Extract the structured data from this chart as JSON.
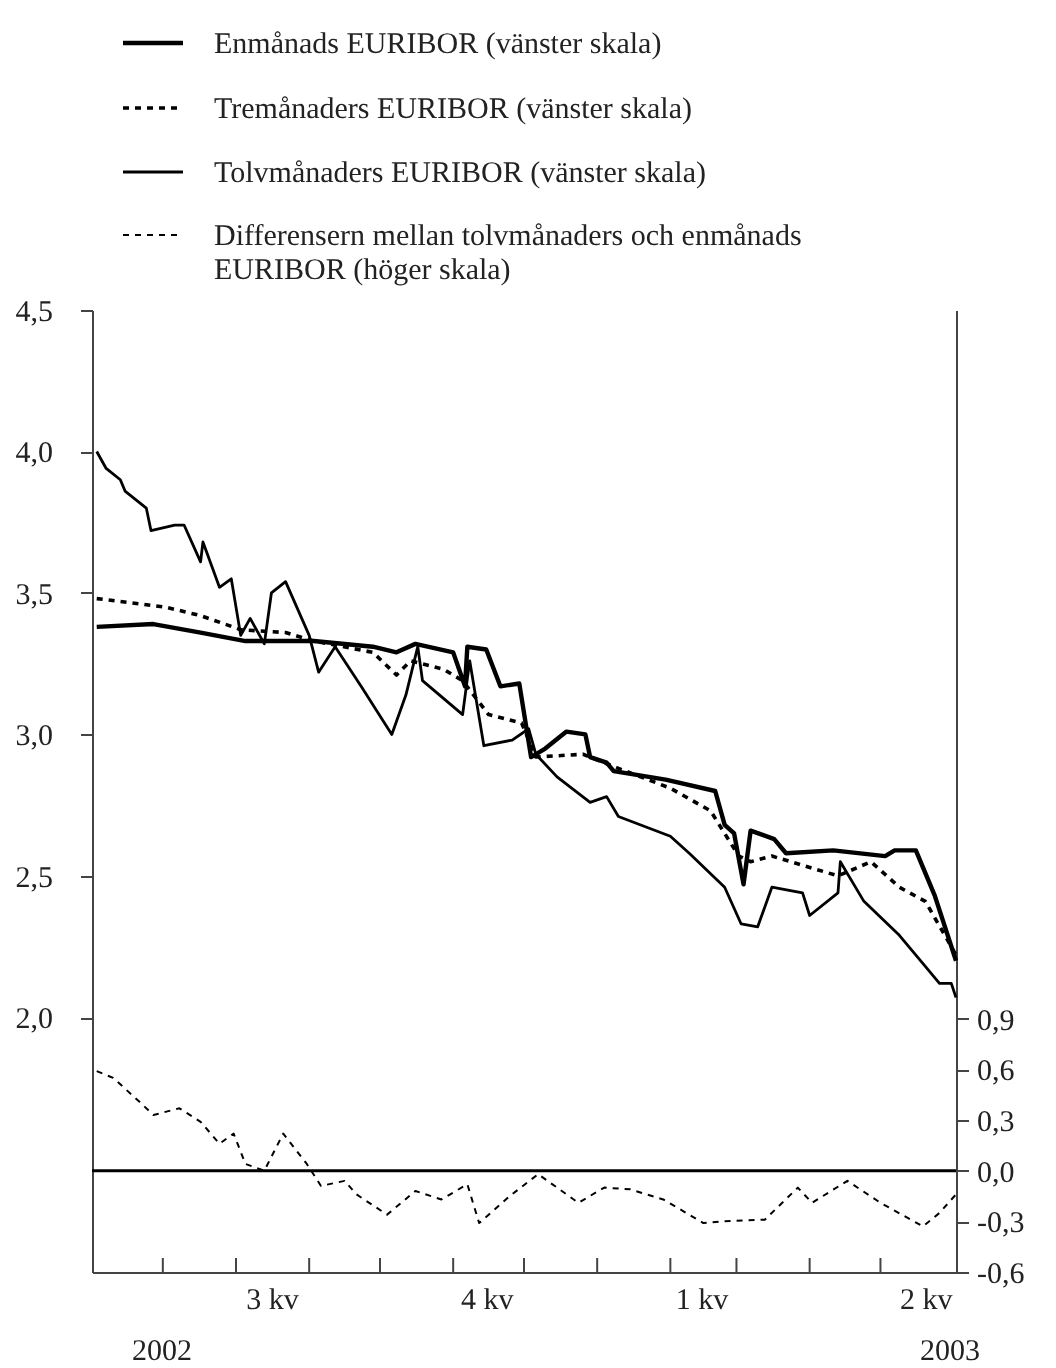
{
  "chart_data": {
    "type": "line",
    "legend": "top left",
    "xlim": [
      "2002-06-01",
      "2003-06-02"
    ],
    "ylim": [
      1.1,
      4.5
    ],
    "y2lim": [
      -0.6,
      5.1
    ],
    "yticks": [
      {
        "value": 2.0,
        "label": "2,0"
      },
      {
        "value": 2.5,
        "label": "2,5"
      },
      {
        "value": 3.0,
        "label": "3,0"
      },
      {
        "value": 3.5,
        "label": "3,5"
      },
      {
        "value": 4.0,
        "label": "4,0"
      },
      {
        "value": 4.5,
        "label": "4,5"
      }
    ],
    "y2ticks": [
      {
        "value": -0.6,
        "label": "-0,6"
      },
      {
        "value": -0.3,
        "label": "-0,3"
      },
      {
        "value": 0.0,
        "label": "0,0"
      },
      {
        "value": 0.3,
        "label": "0,3"
      },
      {
        "value": 0.6,
        "label": "0,6"
      },
      {
        "value": 0.9,
        "label": "0,9"
      }
    ],
    "xticks": [
      {
        "value": "2002-07-01",
        "label": null
      },
      {
        "value": "2002-08-01",
        "label": null
      },
      {
        "value": "2002-09-01",
        "label": null
      },
      {
        "value": "2002-10-01",
        "label": null
      },
      {
        "value": "2002-11-01",
        "label": null
      },
      {
        "value": "2002-12-01",
        "label": null
      },
      {
        "value": "2003-01-01",
        "label": null
      },
      {
        "value": "2003-02-01",
        "label": null
      },
      {
        "value": "2003-03-01",
        "label": null
      },
      {
        "value": "2003-04-01",
        "label": null
      },
      {
        "value": "2003-05-01",
        "label": null
      },
      {
        "value": "2002-08-16",
        "label": "3 kv"
      },
      {
        "value": "2002-11-15",
        "label": "4 kv"
      },
      {
        "value": "2003-02-14",
        "label": "1 kv"
      },
      {
        "value": "2003-05-20",
        "label": "2 kv"
      }
    ],
    "annotations": [
      "2002",
      "2003"
    ],
    "ref_lines": [
      {
        "axis": "y2",
        "value": 0,
        "color": "#000000"
      }
    ],
    "series": [
      {
        "name": "Enmånads EURIBOR (vänster skala)",
        "color": "#000000",
        "line_style": "solid",
        "x": [
          "2002-06-03",
          "2002-06-27",
          "2002-07-17",
          "2002-08-05",
          "2002-09-03",
          "2002-09-28",
          "2002-10-08",
          "2002-10-16",
          "2002-11-01",
          "2002-11-06",
          "2002-11-07",
          "2002-11-15",
          "2002-11-21",
          "2002-11-29",
          "2002-12-04",
          "2002-12-10",
          "2002-12-19",
          "2002-12-27",
          "2002-12-29",
          "2003-01-05",
          "2003-01-08",
          "2003-01-30",
          "2003-02-20",
          "2003-02-24",
          "2003-02-28",
          "2003-03-04",
          "2003-03-07",
          "2003-03-17",
          "2003-03-22",
          "2003-04-11",
          "2003-05-03",
          "2003-05-07",
          "2003-05-16",
          "2003-05-24",
          "2003-06-02"
        ],
        "values": [
          3.38,
          3.39,
          3.36,
          3.33,
          3.33,
          3.31,
          3.29,
          3.32,
          3.29,
          3.17,
          3.31,
          3.3,
          3.17,
          3.18,
          2.92,
          2.95,
          3.01,
          3.0,
          2.92,
          2.9,
          2.87,
          2.84,
          2.8,
          2.68,
          2.65,
          2.47,
          2.66,
          2.63,
          2.58,
          2.59,
          2.57,
          2.59,
          2.59,
          2.43,
          2.2
        ]
      },
      {
        "name": "Tremånaders EURIBOR (vänster skala)",
        "color": "#000000",
        "line_style": "dashed",
        "x": [
          "2002-06-03",
          "2002-07-02",
          "2002-07-17",
          "2002-08-03",
          "2002-08-22",
          "2002-09-03",
          "2002-09-28",
          "2002-10-08",
          "2002-10-14",
          "2002-10-28",
          "2002-11-05",
          "2002-11-16",
          "2002-11-30",
          "2002-12-06",
          "2002-12-26",
          "2003-01-10",
          "2003-02-01",
          "2003-02-18",
          "2003-03-02",
          "2003-03-07",
          "2003-03-16",
          "2003-04-13",
          "2003-04-27",
          "2003-05-09",
          "2003-05-20",
          "2003-05-31",
          "2003-06-02"
        ],
        "values": [
          3.48,
          3.45,
          3.42,
          3.37,
          3.36,
          3.33,
          3.29,
          3.21,
          3.26,
          3.23,
          3.19,
          3.07,
          3.04,
          2.92,
          2.93,
          2.88,
          2.81,
          2.73,
          2.57,
          2.55,
          2.57,
          2.5,
          2.55,
          2.46,
          2.41,
          2.25,
          2.22
        ]
      },
      {
        "name": "Tolvmånaders EURIBOR (vänster skala)",
        "color": "#000000",
        "line_style": "solid",
        "x": [
          "2002-06-03",
          "2002-06-07",
          "2002-06-13",
          "2002-06-15",
          "2002-06-24",
          "2002-06-26",
          "2002-07-06",
          "2002-07-10",
          "2002-07-17",
          "2002-07-18",
          "2002-07-25",
          "2002-07-30",
          "2002-08-03",
          "2002-08-07",
          "2002-08-13",
          "2002-08-16",
          "2002-08-22",
          "2002-09-01",
          "2002-09-05",
          "2002-09-12",
          "2002-09-23",
          "2002-10-06",
          "2002-10-12",
          "2002-10-17",
          "2002-10-19",
          "2002-11-05",
          "2002-11-08",
          "2002-11-14",
          "2002-11-26",
          "2002-12-03",
          "2002-12-06",
          "2002-12-15",
          "2002-12-29",
          "2003-01-05",
          "2003-01-10",
          "2003-02-01",
          "2003-02-09",
          "2003-02-24",
          "2003-03-03",
          "2003-03-10",
          "2003-03-16",
          "2003-03-29",
          "2003-04-01",
          "2003-04-13",
          "2003-04-14",
          "2003-04-24",
          "2003-05-09",
          "2003-05-20",
          "2003-05-26",
          "2003-05-31",
          "2003-06-02"
        ],
        "values": [
          4.0,
          3.94,
          3.9,
          3.86,
          3.8,
          3.72,
          3.74,
          3.74,
          3.61,
          3.68,
          3.52,
          3.55,
          3.35,
          3.41,
          3.32,
          3.5,
          3.54,
          3.35,
          3.22,
          3.31,
          3.17,
          3.0,
          3.14,
          3.31,
          3.19,
          3.07,
          3.26,
          2.96,
          2.98,
          3.02,
          2.93,
          2.85,
          2.76,
          2.78,
          2.71,
          2.64,
          2.58,
          2.46,
          2.33,
          2.32,
          2.46,
          2.44,
          2.36,
          2.44,
          2.55,
          2.41,
          2.29,
          2.18,
          2.12,
          2.12,
          2.07
        ]
      },
      {
        "name": "Differensern mellan tolvmånaders och enmånads EURIBOR (höger skala)",
        "color": "#000000",
        "line_style": "dashed",
        "axis": "y2",
        "x": [
          "2002-06-03",
          "2002-06-10",
          "2002-06-21",
          "2002-06-27",
          "2002-07-08",
          "2002-07-17",
          "2002-07-25",
          "2002-07-31",
          "2002-08-05",
          "2002-08-13",
          "2002-08-21",
          "2002-08-31",
          "2002-09-06",
          "2002-09-16",
          "2002-09-21",
          "2002-10-04",
          "2002-10-16",
          "2002-10-27",
          "2002-11-07",
          "2002-11-12",
          "2002-11-25",
          "2002-12-07",
          "2002-12-24",
          "2003-01-04",
          "2003-01-15",
          "2003-01-29",
          "2003-02-15",
          "2003-02-24",
          "2003-03-13",
          "2003-03-27",
          "2003-04-02",
          "2003-04-17",
          "2003-05-01",
          "2003-05-19",
          "2003-05-26",
          "2003-06-02"
        ],
        "values": [
          0.59,
          0.55,
          0.41,
          0.33,
          0.37,
          0.29,
          0.16,
          0.22,
          0.04,
          0.0,
          0.22,
          0.04,
          -0.09,
          -0.06,
          -0.14,
          -0.26,
          -0.12,
          -0.17,
          -0.08,
          -0.31,
          -0.15,
          -0.02,
          -0.19,
          -0.1,
          -0.11,
          -0.17,
          -0.31,
          -0.3,
          -0.29,
          -0.1,
          -0.19,
          -0.06,
          -0.19,
          -0.33,
          -0.25,
          -0.14
        ]
      }
    ]
  }
}
